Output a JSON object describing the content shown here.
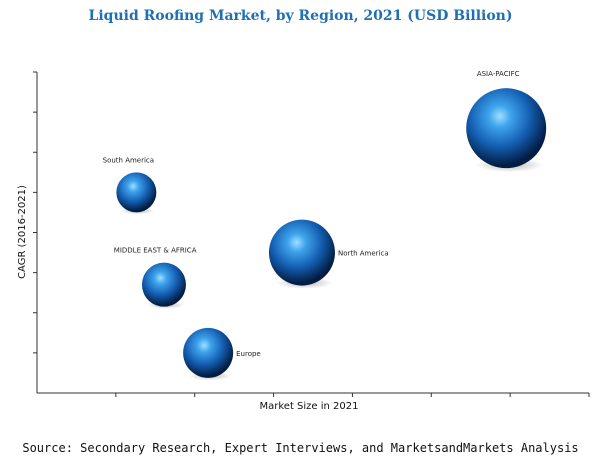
{
  "chart_data": {
    "type": "bubble",
    "title": "Liquid Roofing Market, by Region, 2021 (USD Billion)",
    "xlabel": "Market Size in 2021",
    "ylabel": "CAGR (2016-2021)",
    "xlim": [
      0,
      10
    ],
    "ylim": [
      0,
      8
    ],
    "grid": false,
    "series": [
      {
        "name": "ASIA-PACIFC",
        "x": 8.5,
        "y": 6.6,
        "size": 40
      },
      {
        "name": "South America",
        "x": 1.8,
        "y": 5.0,
        "size": 20
      },
      {
        "name": "MIDDLE EAST & AFRICA",
        "x": 2.3,
        "y": 2.7,
        "size": 22
      },
      {
        "name": "North America",
        "x": 4.8,
        "y": 3.5,
        "size": 33
      },
      {
        "name": "Europe",
        "x": 3.1,
        "y": 1.0,
        "size": 25
      }
    ],
    "colors": {
      "bubble_light": "#7fd0ff",
      "bubble_mid": "#1a6fc4",
      "bubble_dark": "#02204a",
      "title": "#1f6fb3"
    }
  },
  "source": "Source: Secondary Research, Expert Interviews, and MarketsandMarkets Analysis"
}
